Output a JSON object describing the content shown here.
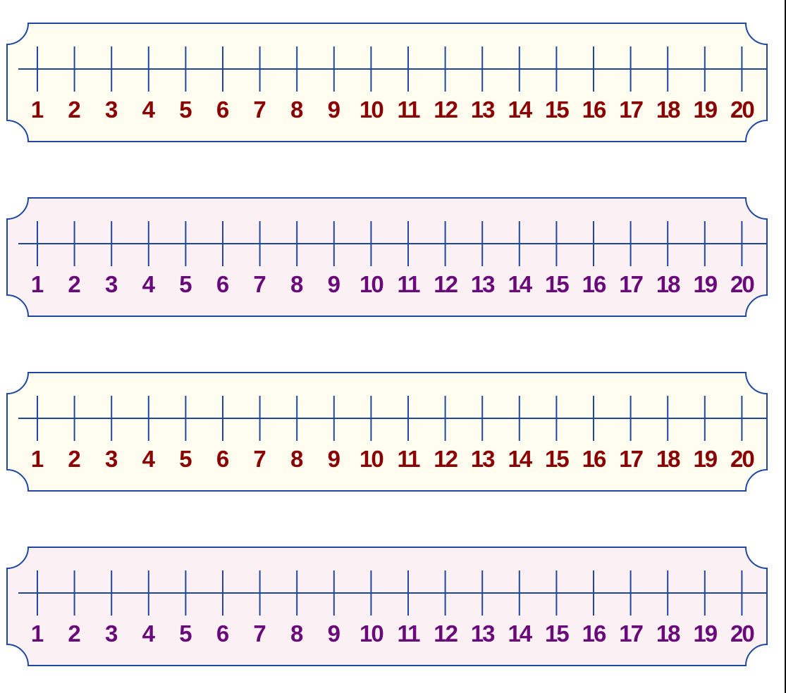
{
  "strips": [
    {
      "fill": "#fefdf0",
      "label_color": "#8b0000",
      "labels": [
        "1",
        "2",
        "3",
        "4",
        "5",
        "6",
        "7",
        "8",
        "9",
        "10",
        "11",
        "12",
        "13",
        "14",
        "15",
        "16",
        "17",
        "18",
        "19",
        "20"
      ]
    },
    {
      "fill": "#fbf1f5",
      "label_color": "#6a0a7a",
      "labels": [
        "1",
        "2",
        "3",
        "4",
        "5",
        "6",
        "7",
        "8",
        "9",
        "10",
        "11",
        "12",
        "13",
        "14",
        "15",
        "16",
        "17",
        "18",
        "19",
        "20"
      ]
    },
    {
      "fill": "#fefdf0",
      "label_color": "#8b0000",
      "labels": [
        "1",
        "2",
        "3",
        "4",
        "5",
        "6",
        "7",
        "8",
        "9",
        "10",
        "11",
        "12",
        "13",
        "14",
        "15",
        "16",
        "17",
        "18",
        "19",
        "20"
      ]
    },
    {
      "fill": "#fbf1f5",
      "label_color": "#6a0a7a",
      "labels": [
        "1",
        "2",
        "3",
        "4",
        "5",
        "6",
        "7",
        "8",
        "9",
        "10",
        "11",
        "12",
        "13",
        "14",
        "15",
        "16",
        "17",
        "18",
        "19",
        "20"
      ]
    }
  ],
  "line_color": "#1f47a0"
}
